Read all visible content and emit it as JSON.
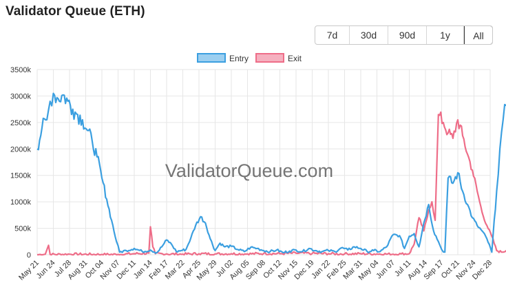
{
  "page": {
    "title": "Validator Queue (ETH)"
  },
  "range_buttons": [
    {
      "label": "7d",
      "active": false
    },
    {
      "label": "30d",
      "active": false
    },
    {
      "label": "90d",
      "active": false
    },
    {
      "label": "1y",
      "active": false
    },
    {
      "label": "All",
      "active": true
    }
  ],
  "watermark": "ValidatorQueue.com",
  "colors": {
    "entry": "#3b9fe0",
    "exit": "#ee6d88",
    "grid": "#e6e6e6"
  },
  "chart_data": {
    "type": "line",
    "y_tick_labels": [
      "0",
      "500k",
      "1000k",
      "1500k",
      "2000k",
      "2500k",
      "3000k",
      "3500k"
    ],
    "ylim": [
      0,
      3500000
    ],
    "x_tick_labels": [
      "May 21",
      "Jun 24",
      "Jul 28",
      "Aug 31",
      "Oct 04",
      "Nov 07",
      "Dec 11",
      "Jan 14",
      "Feb 17",
      "Mar 22",
      "Apr 25",
      "May 29",
      "Jul 02",
      "Aug 05",
      "Sep 08",
      "Oct 12",
      "Nov 15",
      "Dec 19",
      "Jan 22",
      "Feb 25",
      "Mar 31",
      "May 04",
      "Jun 07",
      "Jul 11",
      "Aug 14",
      "Sep 17",
      "Oct 21",
      "Nov 24",
      "Dec 28"
    ],
    "legend_position": "top",
    "grid": true,
    "series": [
      {
        "name": "Entry",
        "points": [
          [
            0,
            2000000
          ],
          [
            0.3,
            2400000
          ],
          [
            0.6,
            2550000
          ],
          [
            0.8,
            2900000
          ],
          [
            1.0,
            3050000
          ],
          [
            1.3,
            2950000
          ],
          [
            1.6,
            3020000
          ],
          [
            1.9,
            2900000
          ],
          [
            2.2,
            2750000
          ],
          [
            2.5,
            2650000
          ],
          [
            2.8,
            2550000
          ],
          [
            3.1,
            2350000
          ],
          [
            3.4,
            2150000
          ],
          [
            3.7,
            1850000
          ],
          [
            4.0,
            1450000
          ],
          [
            4.3,
            1050000
          ],
          [
            4.6,
            650000
          ],
          [
            4.9,
            250000
          ],
          [
            5.1,
            50000
          ],
          [
            5.5,
            80000
          ],
          [
            6.0,
            120000
          ],
          [
            6.5,
            60000
          ],
          [
            7.0,
            90000
          ],
          [
            7.4,
            40000
          ],
          [
            7.7,
            150000
          ],
          [
            8.0,
            280000
          ],
          [
            8.3,
            200000
          ],
          [
            8.6,
            60000
          ],
          [
            8.9,
            80000
          ],
          [
            9.2,
            100000
          ],
          [
            9.5,
            320000
          ],
          [
            9.8,
            560000
          ],
          [
            10.1,
            720000
          ],
          [
            10.4,
            600000
          ],
          [
            10.7,
            300000
          ],
          [
            11.0,
            80000
          ],
          [
            11.3,
            220000
          ],
          [
            11.6,
            150000
          ],
          [
            12.0,
            160000
          ],
          [
            12.4,
            100000
          ],
          [
            12.8,
            60000
          ],
          [
            13.2,
            140000
          ],
          [
            13.6,
            120000
          ],
          [
            14.0,
            80000
          ],
          [
            14.4,
            60000
          ],
          [
            14.8,
            90000
          ],
          [
            15.2,
            40000
          ],
          [
            15.6,
            70000
          ],
          [
            16.0,
            90000
          ],
          [
            16.4,
            60000
          ],
          [
            16.8,
            120000
          ],
          [
            17.2,
            80000
          ],
          [
            17.6,
            60000
          ],
          [
            18.0,
            80000
          ],
          [
            18.4,
            60000
          ],
          [
            18.8,
            130000
          ],
          [
            19.2,
            90000
          ],
          [
            19.6,
            150000
          ],
          [
            20.0,
            120000
          ],
          [
            20.4,
            60000
          ],
          [
            20.8,
            80000
          ],
          [
            21.2,
            60000
          ],
          [
            21.6,
            150000
          ],
          [
            22.0,
            380000
          ],
          [
            22.4,
            360000
          ],
          [
            22.7,
            120000
          ],
          [
            23.0,
            350000
          ],
          [
            23.3,
            400000
          ],
          [
            23.6,
            150000
          ],
          [
            23.9,
            600000
          ],
          [
            24.2,
            950000
          ],
          [
            24.5,
            450000
          ],
          [
            24.8,
            250000
          ],
          [
            25.0,
            100000
          ],
          [
            25.2,
            50000
          ],
          [
            25.4,
            1450000
          ],
          [
            25.7,
            1350000
          ],
          [
            26.0,
            1550000
          ],
          [
            26.3,
            1200000
          ],
          [
            26.6,
            950000
          ],
          [
            26.9,
            700000
          ],
          [
            27.2,
            550000
          ],
          [
            27.5,
            450000
          ],
          [
            27.8,
            300000
          ],
          [
            28.1,
            50000
          ],
          [
            28.4,
            1200000
          ],
          [
            28.6,
            2000000
          ],
          [
            28.8,
            2550000
          ],
          [
            29.0,
            2820000
          ]
        ]
      },
      {
        "name": "Exit",
        "points": [
          [
            0,
            0
          ],
          [
            0.5,
            10000
          ],
          [
            0.7,
            180000
          ],
          [
            0.8,
            5000
          ],
          [
            2.0,
            10000
          ],
          [
            4.0,
            5000
          ],
          [
            5.0,
            5000
          ],
          [
            6.0,
            20000
          ],
          [
            6.9,
            30000
          ],
          [
            7.0,
            530000
          ],
          [
            7.15,
            150000
          ],
          [
            7.3,
            20000
          ],
          [
            8.0,
            15000
          ],
          [
            9.0,
            10000
          ],
          [
            10.0,
            20000
          ],
          [
            11.0,
            15000
          ],
          [
            12.0,
            20000
          ],
          [
            13.0,
            15000
          ],
          [
            14.0,
            25000
          ],
          [
            15.0,
            20000
          ],
          [
            16.0,
            30000
          ],
          [
            17.0,
            25000
          ],
          [
            18.0,
            20000
          ],
          [
            19.0,
            15000
          ],
          [
            20.0,
            20000
          ],
          [
            21.0,
            15000
          ],
          [
            22.0,
            10000
          ],
          [
            22.5,
            15000
          ],
          [
            23.0,
            20000
          ],
          [
            23.3,
            200000
          ],
          [
            23.6,
            700000
          ],
          [
            23.9,
            450000
          ],
          [
            24.2,
            850000
          ],
          [
            24.4,
            1000000
          ],
          [
            24.6,
            650000
          ],
          [
            24.8,
            2650000
          ],
          [
            25.1,
            2500000
          ],
          [
            25.4,
            2300000
          ],
          [
            25.7,
            2200000
          ],
          [
            26.0,
            2550000
          ],
          [
            26.3,
            2250000
          ],
          [
            26.6,
            1900000
          ],
          [
            26.9,
            1600000
          ],
          [
            27.2,
            1200000
          ],
          [
            27.5,
            800000
          ],
          [
            27.8,
            550000
          ],
          [
            28.1,
            350000
          ],
          [
            28.4,
            80000
          ],
          [
            28.7,
            50000
          ],
          [
            29.0,
            80000
          ]
        ]
      }
    ]
  }
}
